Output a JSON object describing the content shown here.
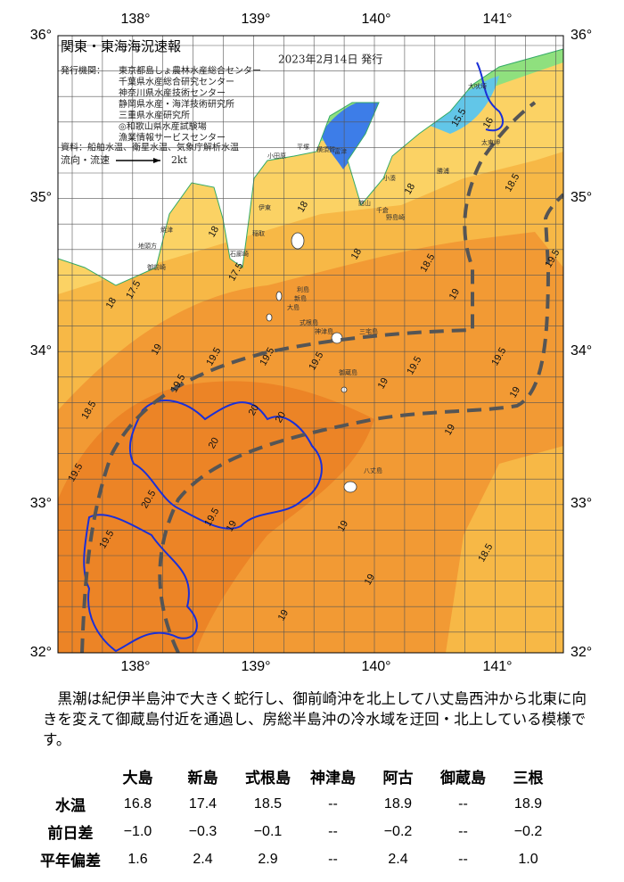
{
  "map": {
    "title": "関東・東海海況速報",
    "date": "2023年2月14日 発行",
    "issuer_label": "発行機関：",
    "issuers": [
      "東京都島しょ農林水産総合センター",
      "千葉県水産総合研究センター",
      "神奈川県水産技術センター",
      "静岡県水産・海洋技術研究所",
      "三重県水産研究所",
      "◎和歌山県水産試験場",
      "漁業情報サービスセンター"
    ],
    "source": "資料：船舶水温、衛星水温、気象庁解析水温",
    "current_legend": "流向・流速",
    "current_scale": "2kt",
    "lon_labels": [
      "138°",
      "139°",
      "140°",
      "141°"
    ],
    "lat_labels": [
      "36°",
      "35°",
      "34°",
      "33°",
      "32°"
    ],
    "place_names": [
      "大吠埼",
      "太東岬",
      "勝浦",
      "小湊",
      "千倉",
      "野島崎",
      "館山",
      "富津",
      "横須賀",
      "平塚",
      "小田原",
      "伊東",
      "稲取",
      "石廊崎",
      "焼津",
      "御前崎",
      "地頭方",
      "大島",
      "利島",
      "新島",
      "式根島",
      "神津島",
      "三宅島",
      "御蔵島",
      "八丈島"
    ],
    "contour_labels": [
      15.5,
      16,
      17.5,
      18,
      18,
      18,
      17.5,
      18,
      18.5,
      18,
      18.5,
      19,
      19,
      19.5,
      19.5,
      19.5,
      19,
      19.5,
      19.5,
      20,
      20,
      20,
      20.5,
      19.5,
      19.5,
      19,
      19,
      19,
      19,
      18.5,
      19,
      18.5,
      19.5,
      19.5,
      19.5,
      19
    ]
  },
  "text": "黒潮は紀伊半島沖で大きく蛇行し、御前崎沖を北上して八丈島西沖から北東に向きを変えて御蔵島付近を通過し、房総半島沖の冷水域を迂回・北上している模様です。",
  "table": {
    "header": [
      "大島",
      "新島",
      "式根島",
      "神津島",
      "阿古",
      "御蔵島",
      "三根"
    ],
    "rows": [
      [
        "水温",
        "16.8",
        "17.4",
        "18.5",
        "--",
        "18.9",
        "--",
        "18.9"
      ],
      [
        "前日差",
        "−1.0",
        "−0.3",
        "−0.1",
        "--",
        "−0.2",
        "--",
        "−0.2"
      ],
      [
        "平年偏差",
        "1.6",
        "2.4",
        "2.9",
        "--",
        "2.4",
        "--",
        "1.0"
      ]
    ]
  }
}
